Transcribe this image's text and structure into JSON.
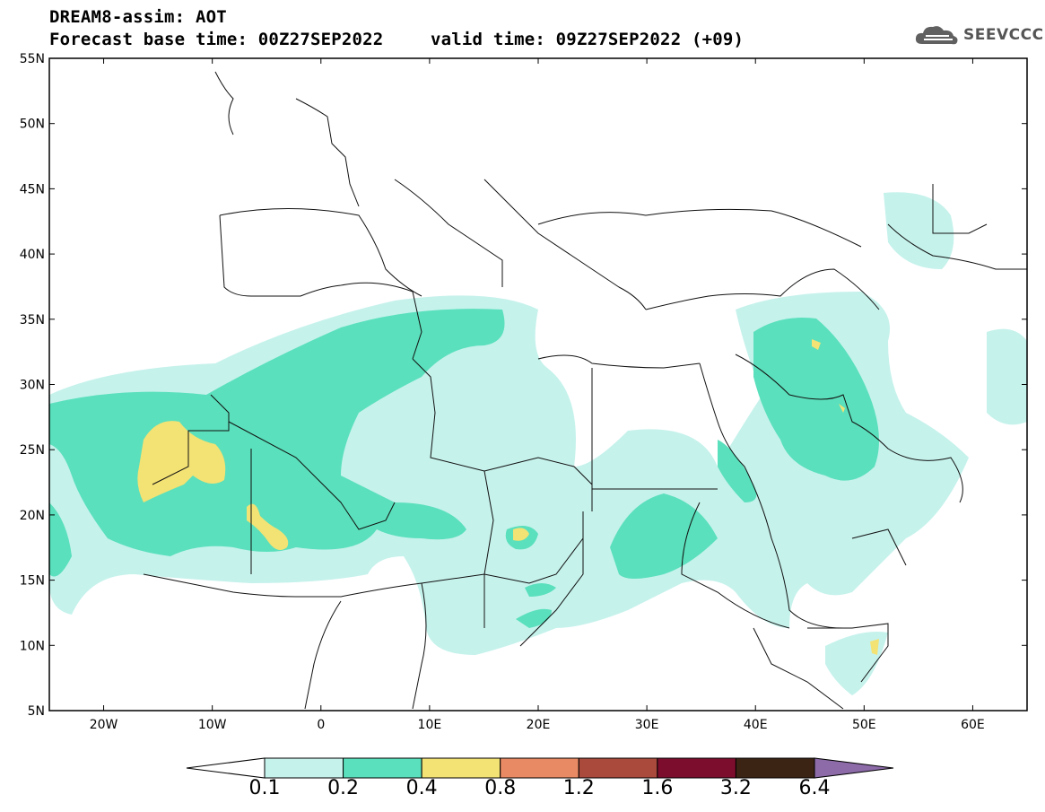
{
  "header": {
    "title": "DREAM8-assim: AOT",
    "base_time": "Forecast base time: 00Z27SEP2022",
    "valid_time": "valid time: 09Z27SEP2022 (+09)"
  },
  "logo": {
    "text": "SEEVCCC",
    "icon": "cloud-icon"
  },
  "map": {
    "lon_range": [
      -25,
      65
    ],
    "lat_range": [
      5,
      55
    ],
    "lat_ticks": [
      "55N",
      "50N",
      "45N",
      "40N",
      "35N",
      "30N",
      "25N",
      "20N",
      "15N",
      "10N",
      "5N"
    ],
    "lon_ticks": [
      "20W",
      "10W",
      "0",
      "10E",
      "20E",
      "30E",
      "40E",
      "50E",
      "60E"
    ]
  },
  "colorbar": {
    "levels": [
      "0.1",
      "0.2",
      "0.4",
      "0.8",
      "1.2",
      "1.6",
      "3.2",
      "6.4"
    ],
    "colors": [
      "#c6f2ec",
      "#5ae0bc",
      "#f3e274",
      "#e88a64",
      "#a94a3c",
      "#7d0d2c",
      "#3c2414",
      "#8c6ba8"
    ]
  }
}
